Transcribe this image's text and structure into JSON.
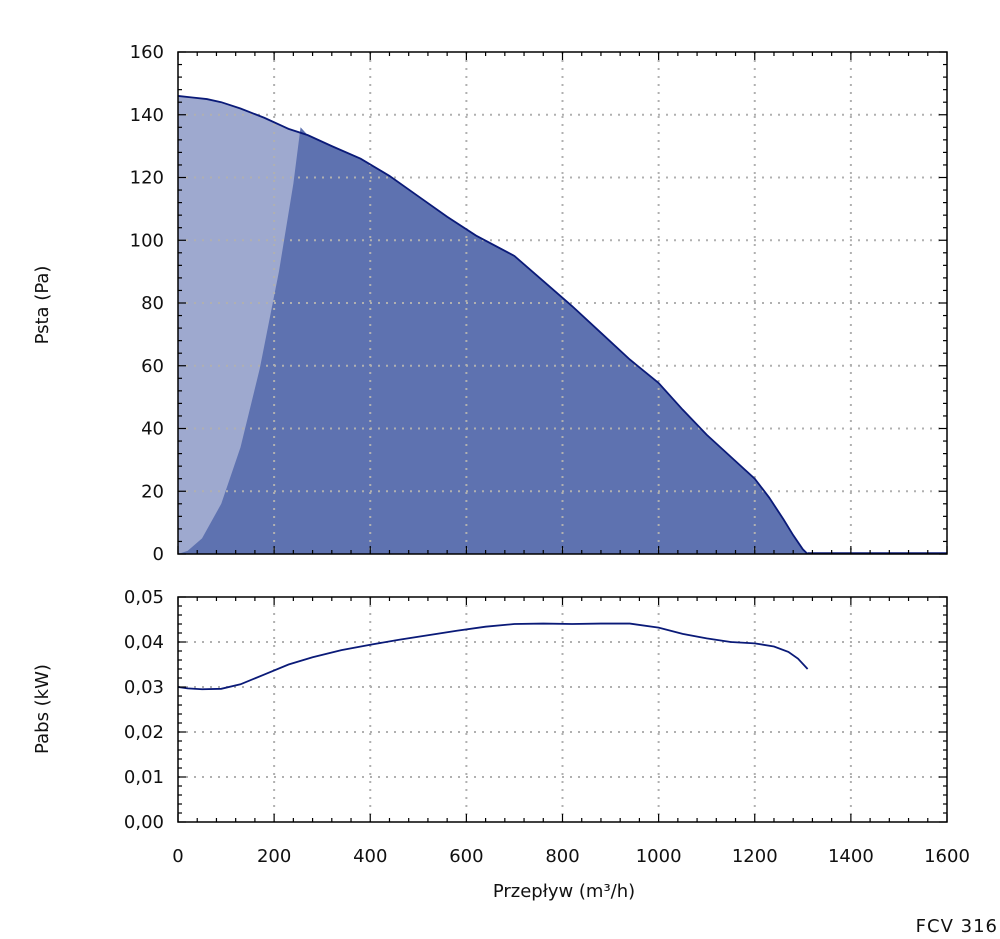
{
  "model_code": "FCV 316",
  "colors": {
    "working_area": "#5e72b0",
    "low_flow_area": "#9ea9cf",
    "curve": "#0a1a78",
    "grid": "#b0b0b0"
  },
  "chart_data": [
    {
      "type": "area",
      "ylabel": "Psta (Pa)",
      "xlabel": "",
      "xlim": [
        0,
        1600
      ],
      "ylim": [
        0,
        160
      ],
      "x_ticks": [
        0,
        200,
        400,
        600,
        800,
        1000,
        1200,
        1400,
        1600
      ],
      "y_ticks": [
        0,
        20,
        40,
        60,
        80,
        100,
        120,
        140,
        160
      ],
      "y_tick_labels": [
        "0",
        "20",
        "40",
        "60",
        "80",
        "100",
        "120",
        "140",
        "160"
      ],
      "grid": true,
      "series": [
        {
          "role": "fan-curve",
          "x": [
            0,
            30,
            60,
            90,
            130,
            180,
            230,
            270,
            320,
            380,
            440,
            500,
            560,
            620,
            700,
            760,
            820,
            880,
            940,
            1000,
            1050,
            1100,
            1150,
            1200,
            1230,
            1260,
            1280,
            1300,
            1310
          ],
          "y": [
            146,
            145.5,
            145,
            144,
            142,
            139,
            135.5,
            133.5,
            130,
            126,
            120.5,
            114,
            107.5,
            101.5,
            95,
            87,
            79,
            70.5,
            62,
            54.5,
            46,
            38,
            31,
            24,
            18,
            11,
            6,
            1.5,
            0
          ]
        },
        {
          "role": "low-flow-boundary",
          "x": [
            0,
            20,
            50,
            90,
            130,
            170,
            210,
            240,
            255
          ],
          "y": [
            0,
            1,
            5,
            16,
            34,
            59,
            90,
            118,
            136
          ]
        }
      ]
    },
    {
      "type": "line",
      "ylabel": "Pabs (kW)",
      "xlabel": "Przepływ (m³/h)",
      "xlim": [
        0,
        1600
      ],
      "ylim": [
        0,
        0.05
      ],
      "x_ticks": [
        0,
        200,
        400,
        600,
        800,
        1000,
        1200,
        1400,
        1600
      ],
      "x_tick_labels": [
        "0",
        "200",
        "400",
        "600",
        "800",
        "1000",
        "1200",
        "1400",
        "1600"
      ],
      "y_ticks": [
        0,
        0.01,
        0.02,
        0.03,
        0.04,
        0.05
      ],
      "y_tick_labels": [
        "0,00",
        "0,01",
        "0,02",
        "0,03",
        "0,04",
        "0,05"
      ],
      "grid": true,
      "series": [
        {
          "role": "power-curve",
          "x": [
            0,
            20,
            50,
            90,
            130,
            180,
            230,
            280,
            340,
            400,
            460,
            520,
            580,
            640,
            700,
            760,
            820,
            880,
            940,
            1000,
            1050,
            1100,
            1150,
            1200,
            1240,
            1270,
            1290,
            1310
          ],
          "y": [
            0.03,
            0.0297,
            0.0295,
            0.0296,
            0.0306,
            0.0328,
            0.035,
            0.0366,
            0.0382,
            0.0394,
            0.0405,
            0.0415,
            0.0425,
            0.0434,
            0.044,
            0.0441,
            0.044,
            0.0441,
            0.0441,
            0.0432,
            0.0418,
            0.0408,
            0.04,
            0.0397,
            0.039,
            0.0378,
            0.0363,
            0.034
          ]
        }
      ]
    }
  ]
}
